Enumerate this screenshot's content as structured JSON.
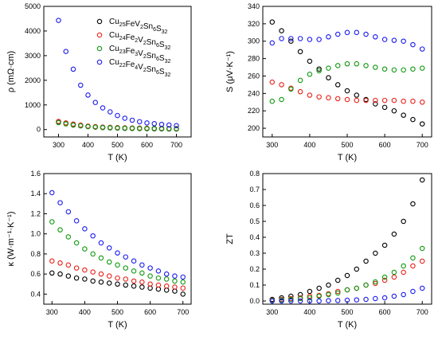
{
  "chart_data": [
    {
      "type": "scatter",
      "panel": "top-left",
      "xlabel": "T (K)",
      "ylabel": "ρ (mΩ·cm)",
      "xlim": [
        250,
        750
      ],
      "ylim": [
        -300,
        5000
      ],
      "xticks": [
        300,
        400,
        500,
        600,
        700
      ],
      "yticks": [
        0,
        1000,
        2000,
        3000,
        4000,
        5000
      ],
      "legend": {
        "placement": "top-right",
        "entries": [
          {
            "pre": "Cu",
            "sub1": "25",
            "mid": "FeV",
            "sub2": "2",
            "post1": "Sn",
            "sub3": "6",
            "post2": "S",
            "sub4": "32"
          },
          {
            "pre": "Cu",
            "sub1": "24",
            "mid": "Fe",
            "sub1b": "2",
            "mid2": "V",
            "sub2": "2",
            "post1": "Sn",
            "sub3": "6",
            "post2": "S",
            "sub4": "32"
          },
          {
            "pre": "Cu",
            "sub1": "23",
            "mid": "Fe",
            "sub1b": "3",
            "mid2": "V",
            "sub2": "2",
            "post1": "Sn",
            "sub3": "6",
            "post2": "S",
            "sub4": "32"
          },
          {
            "pre": "Cu",
            "sub1": "22",
            "mid": "Fe",
            "sub1b": "4",
            "mid2": "V",
            "sub2": "2",
            "post1": "Sn",
            "sub3": "6",
            "post2": "S",
            "sub4": "32"
          }
        ]
      },
      "x": [
        300,
        325,
        350,
        375,
        400,
        425,
        450,
        475,
        500,
        525,
        550,
        575,
        600,
        625,
        650,
        675,
        700
      ],
      "series": [
        {
          "color": "#000000",
          "values": [
            320,
            260,
            200,
            160,
            120,
            100,
            80,
            70,
            60,
            50,
            45,
            40,
            35,
            30,
            28,
            25,
            22
          ]
        },
        {
          "color": "#e8221b",
          "values": [
            330,
            270,
            220,
            180,
            140,
            120,
            100,
            90,
            80,
            70,
            65,
            60,
            55,
            50,
            48,
            45,
            42
          ]
        },
        {
          "color": "#0f9a0f",
          "values": [
            280,
            230,
            180,
            150,
            120,
            100,
            85,
            75,
            65,
            55,
            50,
            45,
            40,
            38,
            35,
            32,
            30
          ]
        },
        {
          "color": "#1c1cf0",
          "values": [
            4430,
            3170,
            2450,
            1800,
            1400,
            1100,
            880,
            720,
            570,
            460,
            380,
            320,
            270,
            240,
            210,
            185,
            160
          ]
        }
      ]
    },
    {
      "type": "scatter",
      "panel": "top-right",
      "xlabel": "T (K)",
      "ylabel": "S (μV·K⁻¹)",
      "xlim": [
        275,
        725
      ],
      "ylim": [
        190,
        340
      ],
      "xticks": [
        300,
        400,
        500,
        600,
        700
      ],
      "yticks": [
        200,
        220,
        240,
        260,
        280,
        300,
        320,
        340
      ],
      "x": [
        300,
        325,
        350,
        375,
        400,
        425,
        450,
        475,
        500,
        525,
        550,
        575,
        600,
        625,
        650,
        675,
        700
      ],
      "series": [
        {
          "color": "#000000",
          "values": [
            322,
            312,
            300,
            288,
            277,
            268,
            258,
            250,
            243,
            238,
            233,
            228,
            224,
            220,
            215,
            210,
            205
          ]
        },
        {
          "color": "#e8221b",
          "values": [
            253,
            250,
            246,
            242,
            238,
            236,
            235,
            234,
            233,
            232,
            232,
            232,
            232,
            232,
            231,
            231,
            230
          ]
        },
        {
          "color": "#0f9a0f",
          "values": [
            231,
            233,
            245,
            255,
            262,
            266,
            269,
            272,
            274,
            274,
            272,
            270,
            268,
            267,
            267,
            268,
            269
          ]
        },
        {
          "color": "#1c1cf0",
          "values": [
            298,
            303,
            303,
            303,
            302,
            302,
            305,
            308,
            310,
            310,
            308,
            305,
            302,
            301,
            300,
            296,
            291
          ]
        }
      ]
    },
    {
      "type": "scatter",
      "panel": "bottom-left",
      "xlabel": "T (K)",
      "ylabel": "κ (W·m⁻¹·K⁻¹)",
      "xlim": [
        275,
        725
      ],
      "ylim": [
        0.3,
        1.6
      ],
      "xticks": [
        300,
        400,
        500,
        600,
        700
      ],
      "yticks": [
        0.4,
        0.6,
        0.8,
        1.0,
        1.2,
        1.4,
        1.6
      ],
      "ytick_labels": [
        "0.4",
        "0.6",
        "0.8",
        "1.0",
        "1.2",
        "1.4",
        "1.6"
      ],
      "x": [
        300,
        325,
        350,
        375,
        400,
        425,
        450,
        475,
        500,
        525,
        550,
        575,
        600,
        625,
        650,
        675,
        700
      ],
      "series": [
        {
          "color": "#000000",
          "values": [
            0.61,
            0.6,
            0.58,
            0.56,
            0.55,
            0.53,
            0.52,
            0.51,
            0.5,
            0.49,
            0.48,
            0.47,
            0.46,
            0.45,
            0.44,
            0.43,
            0.4
          ]
        },
        {
          "color": "#e8221b",
          "values": [
            0.73,
            0.71,
            0.69,
            0.66,
            0.64,
            0.62,
            0.6,
            0.58,
            0.56,
            0.55,
            0.53,
            0.52,
            0.5,
            0.49,
            0.48,
            0.47,
            0.46
          ]
        },
        {
          "color": "#0f9a0f",
          "values": [
            1.12,
            1.04,
            0.97,
            0.91,
            0.85,
            0.8,
            0.76,
            0.72,
            0.69,
            0.66,
            0.63,
            0.61,
            0.58,
            0.56,
            0.55,
            0.53,
            0.52
          ]
        },
        {
          "color": "#1c1cf0",
          "values": [
            1.41,
            1.31,
            1.22,
            1.13,
            1.05,
            0.98,
            0.91,
            0.86,
            0.81,
            0.77,
            0.73,
            0.69,
            0.66,
            0.63,
            0.6,
            0.58,
            0.57
          ]
        }
      ]
    },
    {
      "type": "scatter",
      "panel": "bottom-right",
      "xlabel": "T (K)",
      "ylabel": "ZT",
      "xlim": [
        275,
        725
      ],
      "ylim": [
        -0.02,
        0.8
      ],
      "xticks": [
        300,
        400,
        500,
        600,
        700
      ],
      "yticks": [
        0.0,
        0.1,
        0.2,
        0.3,
        0.4,
        0.5,
        0.6,
        0.7,
        0.8
      ],
      "ytick_labels": [
        "0.0",
        "0.1",
        "0.2",
        "0.3",
        "0.4",
        "0.5",
        "0.6",
        "0.7",
        "0.8"
      ],
      "x": [
        300,
        325,
        350,
        375,
        400,
        425,
        450,
        475,
        500,
        525,
        550,
        575,
        600,
        625,
        650,
        675,
        700
      ],
      "series": [
        {
          "color": "#000000",
          "values": [
            0.01,
            0.02,
            0.03,
            0.04,
            0.06,
            0.08,
            0.1,
            0.13,
            0.16,
            0.2,
            0.25,
            0.3,
            0.35,
            0.42,
            0.5,
            0.61,
            0.76
          ]
        },
        {
          "color": "#e8221b",
          "values": [
            0.005,
            0.01,
            0.015,
            0.02,
            0.03,
            0.035,
            0.045,
            0.06,
            0.07,
            0.08,
            0.1,
            0.11,
            0.13,
            0.15,
            0.18,
            0.22,
            0.25
          ]
        },
        {
          "color": "#0f9a0f",
          "values": [
            0.003,
            0.006,
            0.01,
            0.015,
            0.02,
            0.03,
            0.04,
            0.05,
            0.07,
            0.08,
            0.1,
            0.12,
            0.15,
            0.18,
            0.22,
            0.27,
            0.33
          ]
        },
        {
          "color": "#1c1cf0",
          "values": [
            0.0,
            0.0,
            0.0,
            0.0,
            0.0,
            0.0,
            0.002,
            0.003,
            0.005,
            0.007,
            0.01,
            0.015,
            0.02,
            0.03,
            0.04,
            0.06,
            0.08
          ]
        }
      ]
    }
  ]
}
